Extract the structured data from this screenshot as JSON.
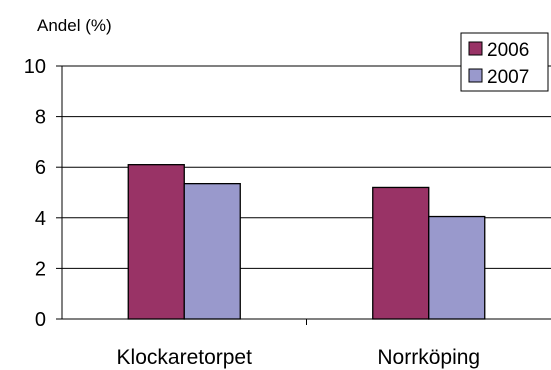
{
  "chart_data": {
    "type": "bar",
    "ylabel": "Andel (%)",
    "xlabel": "",
    "categories": [
      "Klockaretorpet",
      "Norrköping"
    ],
    "series": [
      {
        "name": "2006",
        "values": [
          6.1,
          5.2
        ],
        "color": "#993366"
      },
      {
        "name": "2007",
        "values": [
          5.35,
          4.05
        ],
        "color": "#9999CC"
      }
    ],
    "ylim": [
      0,
      10
    ],
    "yticks": [
      "0",
      "2",
      "4",
      "6",
      "8",
      "10"
    ],
    "grid": true,
    "legend_position": "top-right"
  }
}
